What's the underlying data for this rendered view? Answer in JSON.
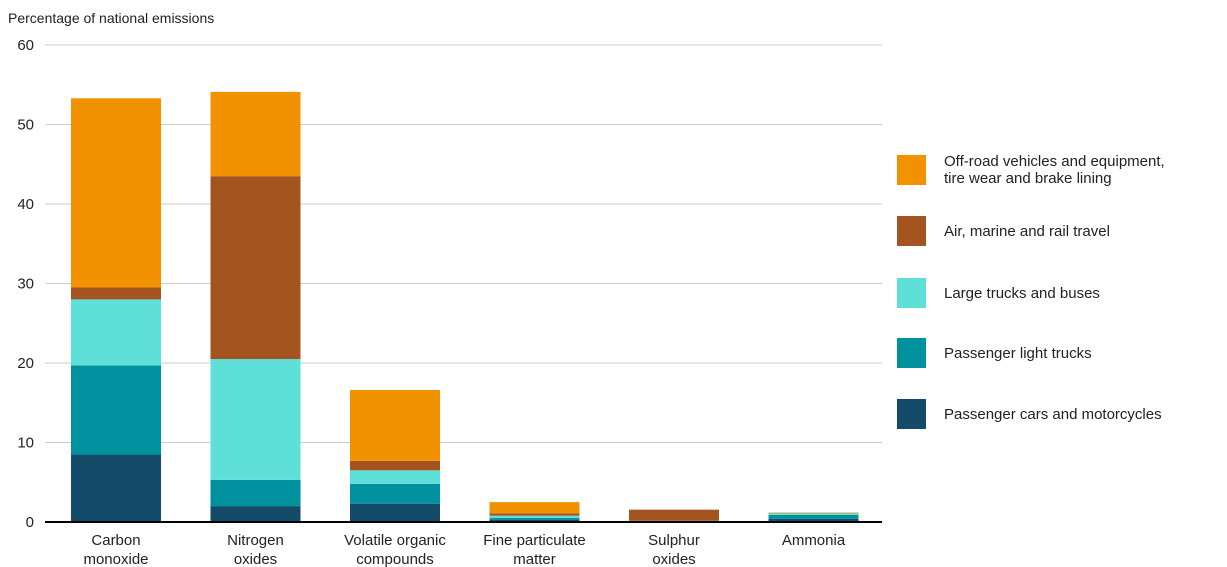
{
  "chart_data": {
    "type": "bar",
    "stacked": true,
    "ylabel": "Percentage of national emissions",
    "ylim": [
      0,
      60
    ],
    "yticks": [
      0,
      10,
      20,
      30,
      40,
      50,
      60
    ],
    "grid": true,
    "legend_position": "right",
    "categories": [
      [
        "Carbon",
        "monoxide"
      ],
      [
        "Nitrogen",
        "oxides"
      ],
      [
        "Volatile organic",
        "compounds"
      ],
      [
        "Fine particulate",
        "matter"
      ],
      [
        "Sulphur",
        "oxides"
      ],
      [
        "Ammonia"
      ]
    ],
    "series": [
      {
        "name": "Passenger cars and motorcycles",
        "color": "#134b68",
        "values": [
          8.5,
          2.0,
          2.3,
          0.3,
          0.05,
          0.4
        ]
      },
      {
        "name": "Passenger light trucks",
        "color": "#00919f",
        "values": [
          11.2,
          3.3,
          2.5,
          0.2,
          0.05,
          0.5
        ]
      },
      {
        "name": "Large trucks and buses",
        "color": "#5ee0d8",
        "values": [
          8.3,
          15.2,
          1.7,
          0.3,
          0.05,
          0.2
        ]
      },
      {
        "name": "Air, marine and rail travel",
        "color": "#a3541f",
        "values": [
          1.5,
          23.0,
          1.2,
          0.3,
          1.4,
          0.05
        ]
      },
      {
        "name": "Off-road vehicles and equipment, tire wear and brake lining",
        "color": "#f39200",
        "values": [
          23.8,
          10.6,
          8.9,
          1.4,
          0.0,
          0.05
        ]
      }
    ],
    "legend_order": [
      4,
      3,
      2,
      1,
      0
    ],
    "legend_lines": [
      [
        "Off-road vehicles and equipment,",
        "tire wear and brake lining"
      ],
      [
        "Air, marine and rail travel"
      ],
      [
        "Large trucks and buses"
      ],
      [
        "Passenger light trucks"
      ],
      [
        "Passenger cars and motorcycles"
      ]
    ],
    "colors": {
      "gridline": "#cccccc",
      "baseline": "#000000"
    }
  }
}
